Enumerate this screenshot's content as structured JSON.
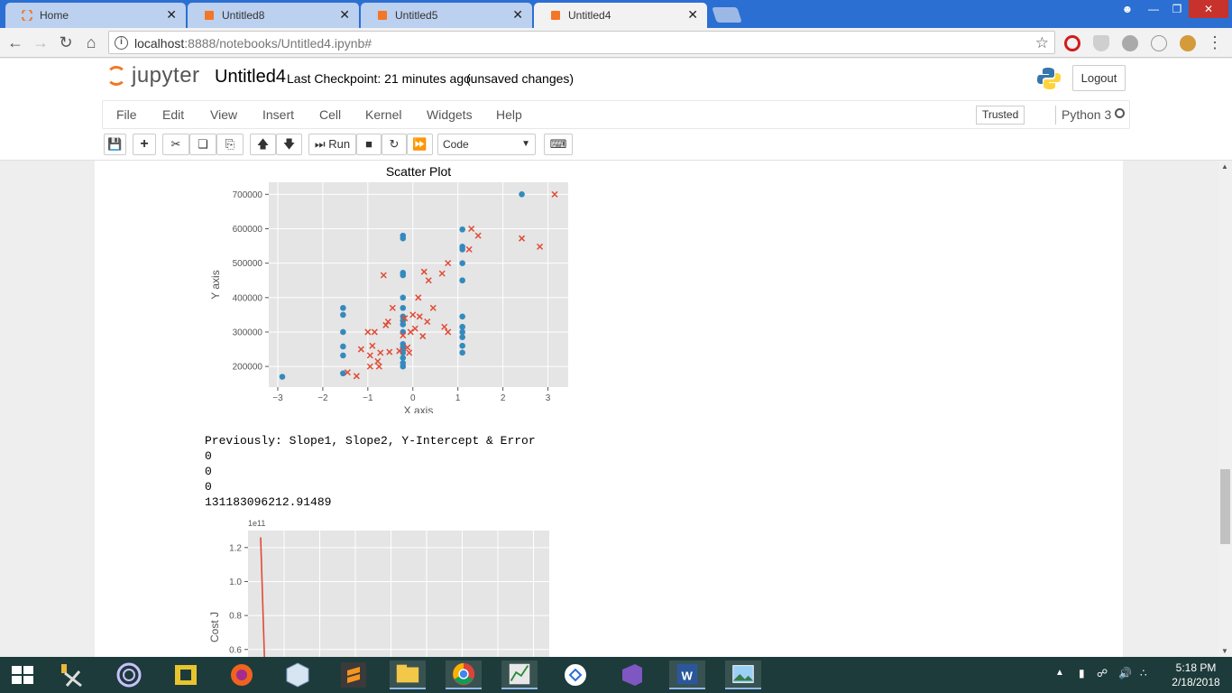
{
  "browser": {
    "tabs": [
      {
        "title": "Home",
        "active": false
      },
      {
        "title": "Untitled8",
        "active": false
      },
      {
        "title": "Untitled5",
        "active": false
      },
      {
        "title": "Untitled4",
        "active": true
      }
    ],
    "url_host": "localhost",
    "url_path": ":8888/notebooks/Untitled4.ipynb#"
  },
  "jupyter": {
    "logo_text": "jupyter",
    "notebook_name": "Untitled4",
    "checkpoint": "Last Checkpoint: 21 minutes ago",
    "unsaved": "(unsaved changes)",
    "logout": "Logout",
    "menu": [
      "File",
      "Edit",
      "View",
      "Insert",
      "Cell",
      "Kernel",
      "Widgets",
      "Help"
    ],
    "trusted": "Trusted",
    "kernel": "Python 3",
    "run_label": "Run",
    "cell_type": "Code"
  },
  "output": {
    "lines": [
      "Previously: Slope1, Slope2, Y-Intercept & Error",
      "0",
      "0",
      "0",
      "131183096212.91489"
    ]
  },
  "chart_data": [
    {
      "type": "scatter",
      "title": "Scatter Plot",
      "xlabel": "X axis",
      "ylabel": "Y axis",
      "xlim": [
        -3.2,
        3.45
      ],
      "ylim": [
        140000,
        735000
      ],
      "xticks": [
        -3,
        -2,
        -1,
        0,
        1,
        2,
        3
      ],
      "yticks": [
        200000,
        300000,
        400000,
        500000,
        600000,
        700000
      ],
      "grid": true,
      "series": [
        {
          "marker": "circle",
          "color": "#348abd",
          "points": [
            [
              -2.9,
              170000
            ],
            [
              -1.55,
              370000
            ],
            [
              -1.55,
              350000
            ],
            [
              -1.55,
              300000
            ],
            [
              -1.55,
              258000
            ],
            [
              -1.55,
              232000
            ],
            [
              -1.55,
              180000
            ],
            [
              -0.22,
              580000
            ],
            [
              -0.22,
              572000
            ],
            [
              -0.22,
              472000
            ],
            [
              -0.22,
              465000
            ],
            [
              -0.22,
              400000
            ],
            [
              -0.22,
              370000
            ],
            [
              -0.22,
              345000
            ],
            [
              -0.22,
              333000
            ],
            [
              -0.22,
              322000
            ],
            [
              -0.22,
              300000
            ],
            [
              -0.22,
              265000
            ],
            [
              -0.22,
              255000
            ],
            [
              -0.22,
              248000
            ],
            [
              -0.22,
              240000
            ],
            [
              -0.22,
              225000
            ],
            [
              -0.22,
              210000
            ],
            [
              -0.22,
              200000
            ],
            [
              1.1,
              598000
            ],
            [
              1.1,
              548000
            ],
            [
              1.1,
              540000
            ],
            [
              1.1,
              500000
            ],
            [
              1.1,
              450000
            ],
            [
              1.1,
              345000
            ],
            [
              1.1,
              315000
            ],
            [
              1.1,
              300000
            ],
            [
              1.1,
              285000
            ],
            [
              1.1,
              260000
            ],
            [
              1.1,
              240000
            ],
            [
              2.42,
              700000
            ]
          ]
        },
        {
          "marker": "x",
          "color": "#e24a33",
          "points": [
            [
              -1.45,
              183000
            ],
            [
              -1.25,
              172000
            ],
            [
              -1.15,
              250000
            ],
            [
              -1.0,
              300000
            ],
            [
              -0.95,
              232000
            ],
            [
              -0.9,
              260000
            ],
            [
              -0.95,
              200000
            ],
            [
              -0.85,
              300000
            ],
            [
              -0.78,
              215000
            ],
            [
              -0.72,
              240000
            ],
            [
              -0.75,
              200000
            ],
            [
              -0.65,
              465000
            ],
            [
              -0.6,
              320000
            ],
            [
              -0.55,
              330000
            ],
            [
              -0.52,
              242000
            ],
            [
              -0.45,
              370000
            ],
            [
              -0.3,
              245000
            ],
            [
              -0.22,
              290000
            ],
            [
              -0.18,
              340000
            ],
            [
              -0.12,
              255000
            ],
            [
              -0.08,
              240000
            ],
            [
              -0.05,
              300000
            ],
            [
              0.0,
              350000
            ],
            [
              0.05,
              310000
            ],
            [
              0.12,
              400000
            ],
            [
              0.15,
              345000
            ],
            [
              0.22,
              288000
            ],
            [
              0.25,
              475000
            ],
            [
              0.32,
              330000
            ],
            [
              0.35,
              450000
            ],
            [
              0.45,
              370000
            ],
            [
              0.65,
              470000
            ],
            [
              0.7,
              315000
            ],
            [
              0.78,
              300000
            ],
            [
              0.78,
              500000
            ],
            [
              1.25,
              540000
            ],
            [
              1.3,
              600000
            ],
            [
              1.45,
              580000
            ],
            [
              2.42,
              572000
            ],
            [
              2.82,
              548000
            ],
            [
              3.15,
              700000
            ]
          ]
        }
      ]
    },
    {
      "type": "line",
      "title": "",
      "xlabel": "",
      "ylabel": "Cost J",
      "offset_text": "1e11",
      "ylim": [
        0.45,
        1.3
      ],
      "yticks": [
        0.6,
        0.8,
        1.0,
        1.2
      ],
      "grid": true,
      "series": [
        {
          "color": "#e24a33",
          "x": [
            0,
            1
          ],
          "y": [
            1.26,
            0.42
          ]
        }
      ]
    }
  ],
  "taskbar": {
    "time": "5:18 PM",
    "date": "2/18/2018"
  }
}
